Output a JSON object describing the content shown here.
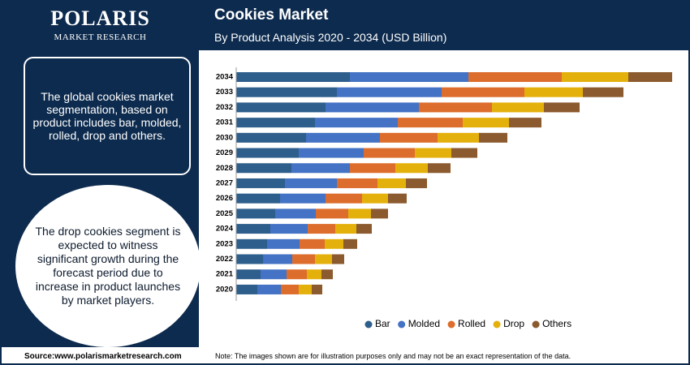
{
  "header": {
    "logo_name": "POLARIS",
    "logo_sub": "MARKET RESEARCH"
  },
  "left_panel": {
    "box_text": "The global cookies market segmentation, based on product includes bar, molded, rolled, drop and others.",
    "circle_text": "The drop cookies segment is expected to witness significant growth during the forecast period due to increase in product launches by market players."
  },
  "footer": {
    "source": "Source:www.polarismarketresearch.com",
    "note": "Note: The images shown are for illustration purposes only and may not be an exact representation of the data."
  },
  "chart_data": {
    "type": "stacked-barh",
    "title": "Cookies Market",
    "subtitle": "By Product Analysis 2020 - 2034 (USD Billion)",
    "categories": [
      "2034",
      "2033",
      "2032",
      "2031",
      "2030",
      "2029",
      "2028",
      "2027",
      "2026",
      "2025",
      "2024",
      "2023",
      "2022",
      "2021",
      "2020"
    ],
    "series": [
      {
        "name": "Bar",
        "color": "#2e5e8c",
        "values": [
          14.0,
          12.4,
          11.0,
          9.7,
          8.6,
          7.7,
          6.8,
          6.0,
          5.4,
          4.8,
          4.2,
          3.8,
          3.3,
          3.0,
          2.6
        ]
      },
      {
        "name": "Molded",
        "color": "#4472c4",
        "values": [
          14.6,
          12.9,
          11.5,
          10.2,
          9.1,
          8.0,
          7.2,
          6.4,
          5.6,
          5.0,
          4.6,
          4.0,
          3.6,
          3.2,
          2.9
        ]
      },
      {
        "name": "Rolled",
        "color": "#dd6d2c",
        "values": [
          11.5,
          10.2,
          9.0,
          8.0,
          7.1,
          6.3,
          5.6,
          5.0,
          4.5,
          4.0,
          3.4,
          3.1,
          2.8,
          2.5,
          2.2
        ]
      },
      {
        "name": "Drop",
        "color": "#e4b10c",
        "values": [
          8.2,
          7.2,
          6.4,
          5.7,
          5.1,
          4.5,
          4.0,
          3.5,
          3.2,
          2.8,
          2.6,
          2.3,
          2.1,
          1.8,
          1.6
        ]
      },
      {
        "name": "Others",
        "color": "#8b5a2e",
        "values": [
          5.4,
          5.0,
          4.4,
          4.0,
          3.5,
          3.2,
          2.8,
          2.6,
          2.3,
          2.1,
          1.9,
          1.7,
          1.5,
          1.4,
          1.3
        ]
      }
    ],
    "xlim": [
      0,
      54
    ],
    "legend": "bottom"
  }
}
